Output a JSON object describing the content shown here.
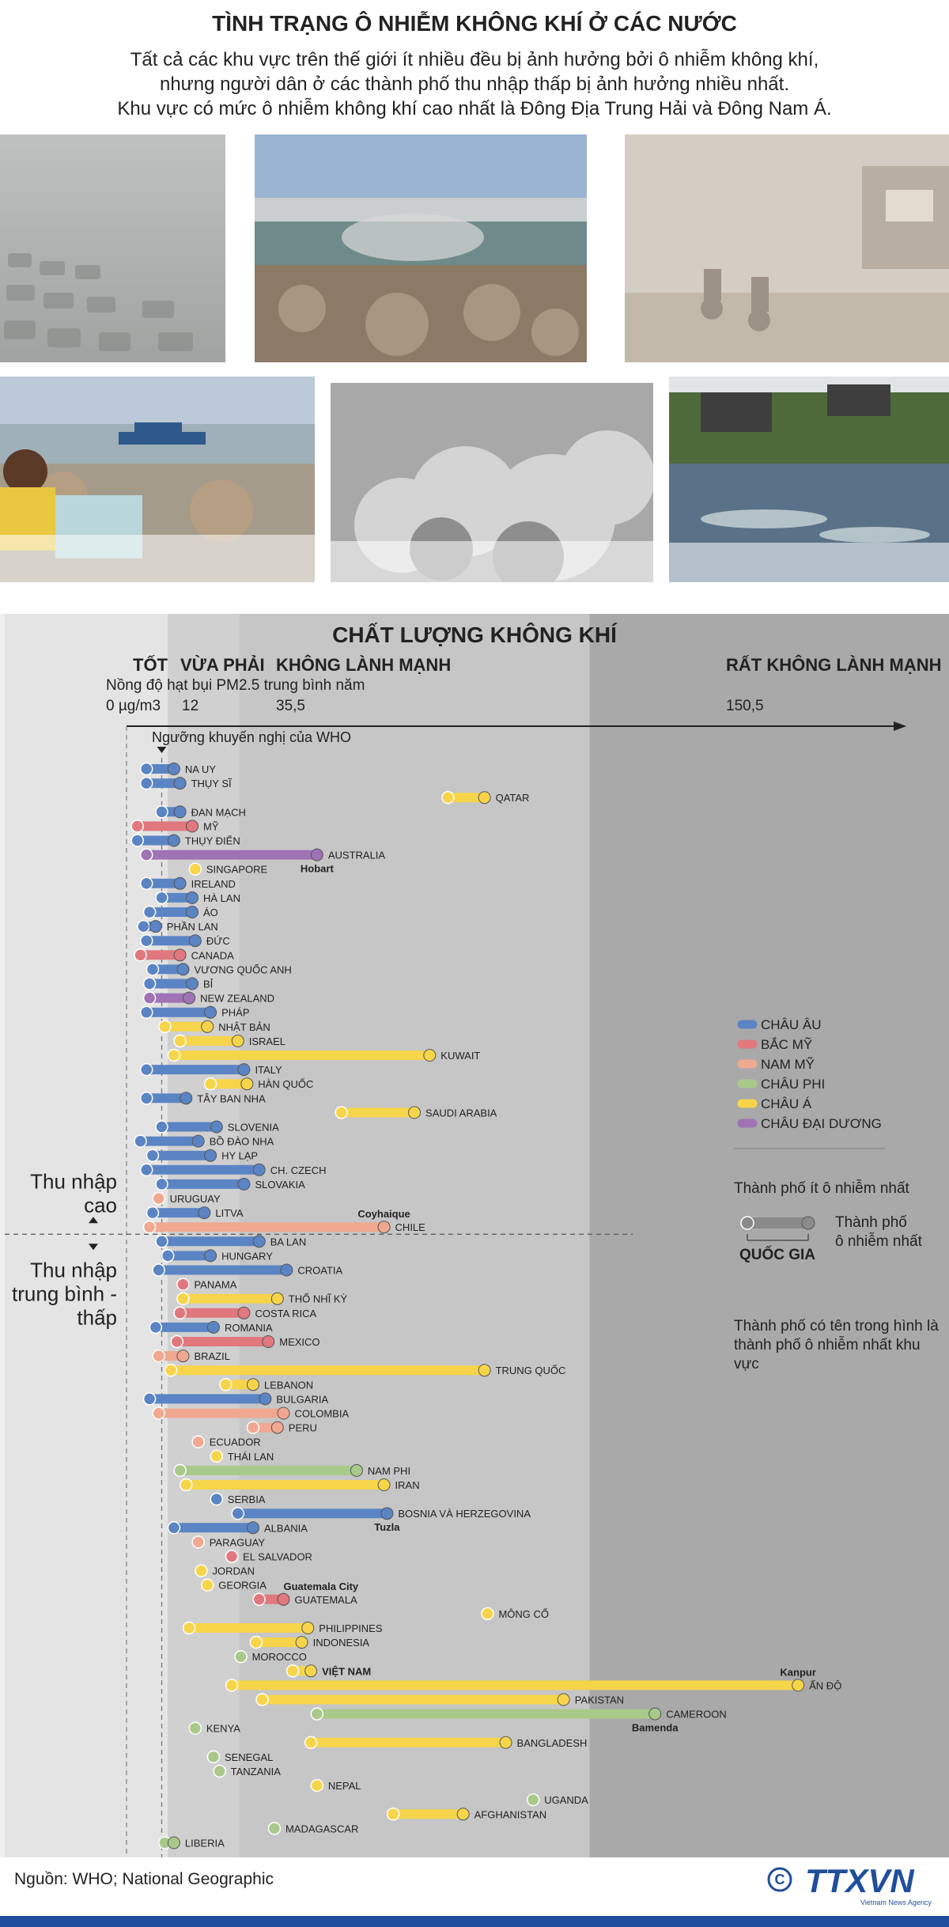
{
  "header": {
    "title": "TÌNH TRẠNG Ô NHIỄM KHÔNG KHÍ Ở CÁC NƯỚC",
    "subtitle_lines": [
      "Tất cả các khu vực trên thế giới ít nhiều đều bị ảnh hưởng bởi ô nhiễm không khí,",
      "nhưng người dân ở các thành phố thu nhập thấp bị ảnh hưởng nhiều nhất.",
      "Khu vực có mức ô nhiễm không khí cao nhất là Đông Địa Trung Hải và Đông Nam Á."
    ]
  },
  "colors": {
    "europe": "#5b84c4",
    "north_america": "#e0787e",
    "south_america": "#f0a890",
    "africa": "#a9c98a",
    "asia": "#f7d54a",
    "oceania": "#9f73b4",
    "band_good": "#e4e4e4",
    "band_moderate": "#d0d0d0",
    "band_unhealthy": "#c6c6c6",
    "band_very": "#a9a9a9",
    "footer_bar": "#1f4e9c"
  },
  "chart_data": {
    "type": "range-dot",
    "title": "CHẤT LƯỢNG KHÔNG KHÍ",
    "xlabel": "Nồng độ hạt bụi PM2.5 trung bình năm",
    "xlim": [
      0,
      200
    ],
    "categories_bands": [
      {
        "label": "TỐT",
        "start_label": "0 µg/m3",
        "start": 0
      },
      {
        "label": "VỪA PHẢI",
        "start_label": "12",
        "start": 12
      },
      {
        "label": "KHÔNG LÀNH MẠNH",
        "start_label": "35,5",
        "start": 35.5
      },
      {
        "label": "RẤT KHÔNG LÀNH MẠNH",
        "start_label": "150,5",
        "start": 150.5
      }
    ],
    "who_guideline": {
      "label": "Ngưỡng khuyến nghị của WHO",
      "value": 10
    },
    "income_groups": {
      "high": "Thu nhập cao",
      "middle_low": "Thu nhập trung bình - thấp"
    },
    "series": [
      {
        "name": "NA UY",
        "region": "europe",
        "min": 5,
        "max": 14
      },
      {
        "name": "THỤY SĨ",
        "region": "europe",
        "min": 5,
        "max": 16
      },
      {
        "name": "QATAR",
        "region": "asia",
        "min": 104,
        "max": 116
      },
      {
        "name": "ĐAN MẠCH",
        "region": "europe",
        "min": 10,
        "max": 16
      },
      {
        "name": "MỸ",
        "region": "north_america",
        "min": 2,
        "max": 20
      },
      {
        "name": "THỤY ĐIỂN",
        "region": "europe",
        "min": 2,
        "max": 14
      },
      {
        "name": "AUSTRALIA",
        "region": "oceania",
        "min": 5,
        "max": 61,
        "city_max": "Hobart"
      },
      {
        "name": "SINGAPORE",
        "region": "asia",
        "min": 21,
        "max": 21
      },
      {
        "name": "IRELAND",
        "region": "europe",
        "min": 5,
        "max": 16
      },
      {
        "name": "HÀ LAN",
        "region": "europe",
        "min": 10,
        "max": 20
      },
      {
        "name": "ÁO",
        "region": "europe",
        "min": 6,
        "max": 20
      },
      {
        "name": "PHẦN LAN",
        "region": "europe",
        "min": 4,
        "max": 8
      },
      {
        "name": "ĐỨC",
        "region": "europe",
        "min": 5,
        "max": 21
      },
      {
        "name": "CANADA",
        "region": "north_america",
        "min": 3,
        "max": 16
      },
      {
        "name": "VƯƠNG QUỐC ANH",
        "region": "europe",
        "min": 7,
        "max": 17
      },
      {
        "name": "BỈ",
        "region": "europe",
        "min": 6,
        "max": 20
      },
      {
        "name": "NEW ZEALAND",
        "region": "oceania",
        "min": 6,
        "max": 19
      },
      {
        "name": "PHÁP",
        "region": "europe",
        "min": 5,
        "max": 26
      },
      {
        "name": "NHẬT BẢN",
        "region": "asia",
        "min": 11,
        "max": 25
      },
      {
        "name": "ISRAEL",
        "region": "asia",
        "min": 16,
        "max": 35
      },
      {
        "name": "KUWAIT",
        "region": "asia",
        "min": 14,
        "max": 98
      },
      {
        "name": "ITALY",
        "region": "europe",
        "min": 5,
        "max": 37
      },
      {
        "name": "HÀN QUỐC",
        "region": "asia",
        "min": 26,
        "max": 38
      },
      {
        "name": "TÂY BAN NHA",
        "region": "europe",
        "min": 5,
        "max": 18
      },
      {
        "name": "SAUDI ARABIA",
        "region": "asia",
        "min": 69,
        "max": 93
      },
      {
        "name": "SLOVENIA",
        "region": "europe",
        "min": 10,
        "max": 28
      },
      {
        "name": "BỒ ĐÀO NHA",
        "region": "europe",
        "min": 3,
        "max": 22
      },
      {
        "name": "HY LẠP",
        "region": "europe",
        "min": 7,
        "max": 26
      },
      {
        "name": "CH. CZECH",
        "region": "europe",
        "min": 5,
        "max": 42
      },
      {
        "name": "SLOVAKIA",
        "region": "europe",
        "min": 10,
        "max": 37
      },
      {
        "name": "URUGUAY",
        "region": "south_america",
        "min": 9,
        "max": 9
      },
      {
        "name": "LITVA",
        "region": "europe",
        "min": 7,
        "max": 24
      },
      {
        "name": "CHILE",
        "region": "south_america",
        "min": 6,
        "max": 83,
        "city_max": "Coyhaique"
      },
      {
        "name": "BA LAN",
        "region": "europe",
        "min": 10,
        "max": 42
      },
      {
        "name": "HUNGARY",
        "region": "europe",
        "min": 12,
        "max": 26
      },
      {
        "name": "CROATIA",
        "region": "europe",
        "min": 9,
        "max": 51
      },
      {
        "name": "PANAMA",
        "region": "north_america",
        "min": 17,
        "max": 17
      },
      {
        "name": "THỔ NHĨ KỲ",
        "region": "asia",
        "min": 17,
        "max": 48
      },
      {
        "name": "COSTA RICA",
        "region": "north_america",
        "min": 16,
        "max": 37
      },
      {
        "name": "ROMANIA",
        "region": "europe",
        "min": 8,
        "max": 27
      },
      {
        "name": "MEXICO",
        "region": "north_america",
        "min": 15,
        "max": 45
      },
      {
        "name": "BRAZIL",
        "region": "south_america",
        "min": 9,
        "max": 17
      },
      {
        "name": "TRUNG QUỐC",
        "region": "asia",
        "min": 13,
        "max": 116
      },
      {
        "name": "LEBANON",
        "region": "asia",
        "min": 31,
        "max": 40
      },
      {
        "name": "BULGARIA",
        "region": "europe",
        "min": 6,
        "max": 44
      },
      {
        "name": "COLOMBIA",
        "region": "south_america",
        "min": 9,
        "max": 50
      },
      {
        "name": "PERU",
        "region": "south_america",
        "min": 40,
        "max": 48
      },
      {
        "name": "ECUADOR",
        "region": "south_america",
        "min": 22,
        "max": 22
      },
      {
        "name": "THÁI LAN",
        "region": "asia",
        "min": 28,
        "max": 28
      },
      {
        "name": "NAM PHI",
        "region": "africa",
        "min": 16,
        "max": 74
      },
      {
        "name": "IRAN",
        "region": "asia",
        "min": 18,
        "max": 83
      },
      {
        "name": "SERBIA",
        "region": "europe",
        "min": 28,
        "max": 28
      },
      {
        "name": "BOSNIA VÀ HERZEGOVINA",
        "region": "europe",
        "min": 35,
        "max": 84,
        "city_max": "Tuzla"
      },
      {
        "name": "ALBANIA",
        "region": "europe",
        "min": 14,
        "max": 40
      },
      {
        "name": "PARAGUAY",
        "region": "south_america",
        "min": 22,
        "max": 22
      },
      {
        "name": "EL SALVADOR",
        "region": "north_america",
        "min": 33,
        "max": 33
      },
      {
        "name": "JORDAN",
        "region": "asia",
        "min": 23,
        "max": 23
      },
      {
        "name": "GEORGIA",
        "region": "asia",
        "min": 25,
        "max": 25
      },
      {
        "name": "GUATEMALA",
        "region": "north_america",
        "min": 42,
        "max": 50,
        "city_max": "Guatemala City"
      },
      {
        "name": "MÔNG CỔ",
        "region": "asia",
        "min": 117,
        "max": 117
      },
      {
        "name": "PHILIPPINES",
        "region": "asia",
        "min": 19,
        "max": 58
      },
      {
        "name": "INDONESIA",
        "region": "asia",
        "min": 41,
        "max": 56
      },
      {
        "name": "MOROCCO",
        "region": "africa",
        "min": 36,
        "max": 36
      },
      {
        "name": "VIỆT NAM",
        "region": "asia",
        "min": 53,
        "max": 59
      },
      {
        "name": "ẤN ĐỘ",
        "region": "asia",
        "min": 33,
        "max": 219,
        "city_max": "Kanpur"
      },
      {
        "name": "PAKISTAN",
        "region": "asia",
        "min": 43,
        "max": 142
      },
      {
        "name": "CAMEROON",
        "region": "africa",
        "min": 61,
        "max": 172,
        "city_max": "Bamenda"
      },
      {
        "name": "KENYA",
        "region": "africa",
        "min": 21,
        "max": 21
      },
      {
        "name": "BANGLADESH",
        "region": "asia",
        "min": 59,
        "max": 123
      },
      {
        "name": "SENEGAL",
        "region": "africa",
        "min": 27,
        "max": 27
      },
      {
        "name": "TANZANIA",
        "region": "africa",
        "min": 29,
        "max": 29
      },
      {
        "name": "NEPAL",
        "region": "asia",
        "min": 61,
        "max": 61
      },
      {
        "name": "UGANDA",
        "region": "africa",
        "min": 132,
        "max": 132
      },
      {
        "name": "AFGHANISTAN",
        "region": "asia",
        "min": 86,
        "max": 109
      },
      {
        "name": "MADAGASCAR",
        "region": "africa",
        "min": 47,
        "max": 47
      },
      {
        "name": "LIBERIA",
        "region": "africa",
        "min": 11,
        "max": 14
      }
    ],
    "legend": [
      {
        "label": "CHÂU ÂU",
        "region": "europe"
      },
      {
        "label": "BẮC MỸ",
        "region": "north_america"
      },
      {
        "label": "NAM MỸ",
        "region": "south_america"
      },
      {
        "label": "CHÂU PHI",
        "region": "africa"
      },
      {
        "label": "CHÂU Á",
        "region": "asia"
      },
      {
        "label": "CHÂU ĐẠI DƯƠNG",
        "region": "oceania"
      }
    ],
    "key": {
      "min_label": "Thành phố ít ô nhiễm nhất",
      "max_label": "Thành phố ô nhiễm nhất",
      "country_label": "QUỐC GIA",
      "note": "Thành phố có tên trong hình là thành phố ô nhiễm nhất khu vực"
    }
  },
  "footer": {
    "source": "Nguồn: WHO; National Geographic",
    "logo_text": "TTXVN",
    "logo_subtext": "Vietnam News Agency"
  }
}
